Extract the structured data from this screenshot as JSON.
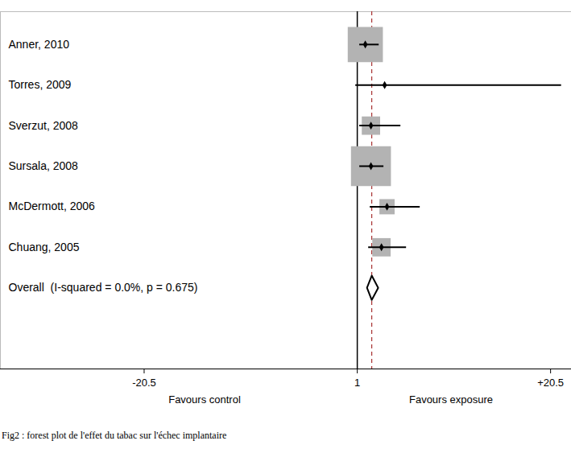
{
  "chart_data": {
    "type": "forest",
    "caption": "Fig2 : forest plot de l'effet du tabac sur l'échec implantaire",
    "xlabels": {
      "left": "Favours control",
      "right": "Favours exposure"
    },
    "xlim": [
      -35,
      22.6
    ],
    "xticks": [
      -20.5,
      1,
      {
        "value": 20.5,
        "label": "+20.5"
      }
    ],
    "null_value": 1,
    "studies": [
      {
        "name": "Anner, 2010",
        "estimate": 1.81,
        "ci_lower": 1.24,
        "ci_upper": 3.2,
        "weight": 33.0
      },
      {
        "name": "Torres, 2009",
        "estimate": 3.76,
        "ci_lower": 0.84,
        "ci_upper": 21.6,
        "weight": 0.1
      },
      {
        "name": "Sverzut, 2008",
        "estimate": 2.38,
        "ci_lower": 1.24,
        "ci_upper": 5.39,
        "weight": 9.0
      },
      {
        "name": "Sursala, 2008",
        "estimate": 2.38,
        "ci_lower": 1.24,
        "ci_upper": 3.68,
        "weight": 42.7
      },
      {
        "name": "McDermott, 2006",
        "estimate": 4.0,
        "ci_lower": 2.3,
        "ci_upper": 7.34,
        "weight": 6.2
      },
      {
        "name": "Chuang, 2005",
        "estimate": 3.44,
        "ci_lower": 2.14,
        "ci_upper": 5.96,
        "weight": 9.0
      }
    ],
    "overall": {
      "label": "Overall  (I-squared = 0.0%, p = 0.675)",
      "estimate": 2.46,
      "ci_lower": 1.98,
      "ci_upper": 3.11
    }
  }
}
